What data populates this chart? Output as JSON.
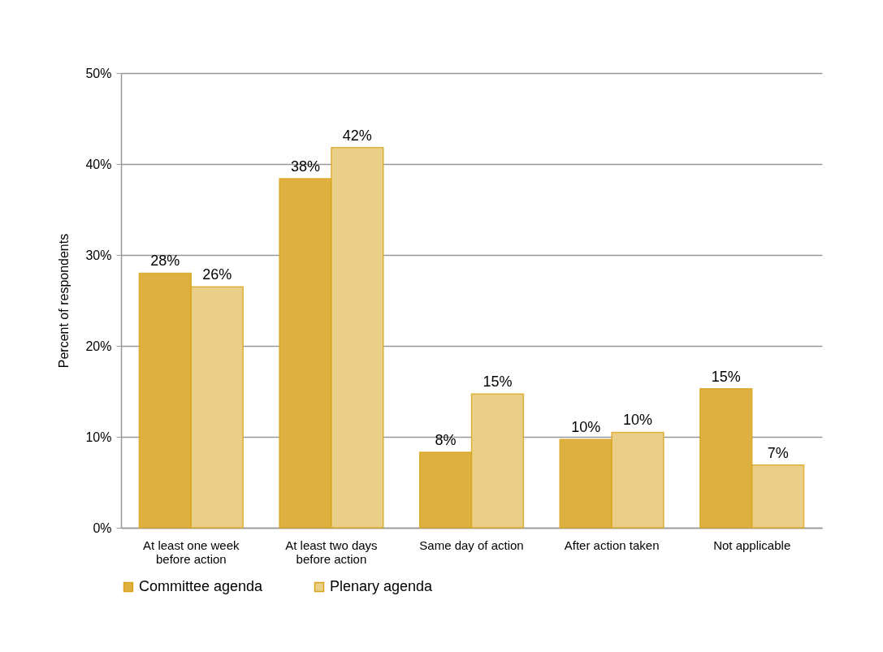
{
  "chart_data": {
    "type": "bar",
    "ylabel": "Percent of respondents",
    "categories": [
      "At least one week before action",
      "At least two days before action",
      "Same day of action",
      "After action taken",
      "Not applicable"
    ],
    "series": [
      {
        "name": "Committee agenda",
        "color": "#deb040",
        "values": [
          28.0,
          38.4,
          8.3,
          9.7,
          15.3
        ],
        "value_labels": [
          "28%",
          "38%",
          "8%",
          "10%",
          "15%"
        ]
      },
      {
        "name": "Plenary agenda",
        "color": "#e9cf87",
        "values": [
          26.5,
          41.8,
          14.7,
          10.5,
          6.9
        ],
        "value_labels": [
          "26%",
          "42%",
          "15%",
          "10%",
          "7%"
        ]
      }
    ],
    "ylim": [
      0,
      50
    ],
    "yticks": [
      {
        "value": 0,
        "label": "0%"
      },
      {
        "value": 10,
        "label": "10%"
      },
      {
        "value": 20,
        "label": "20%"
      },
      {
        "value": 30,
        "label": "30%"
      },
      {
        "value": 40,
        "label": "40%"
      },
      {
        "value": 50,
        "label": "50%"
      }
    ],
    "grid": "y",
    "legend": "bottom"
  }
}
